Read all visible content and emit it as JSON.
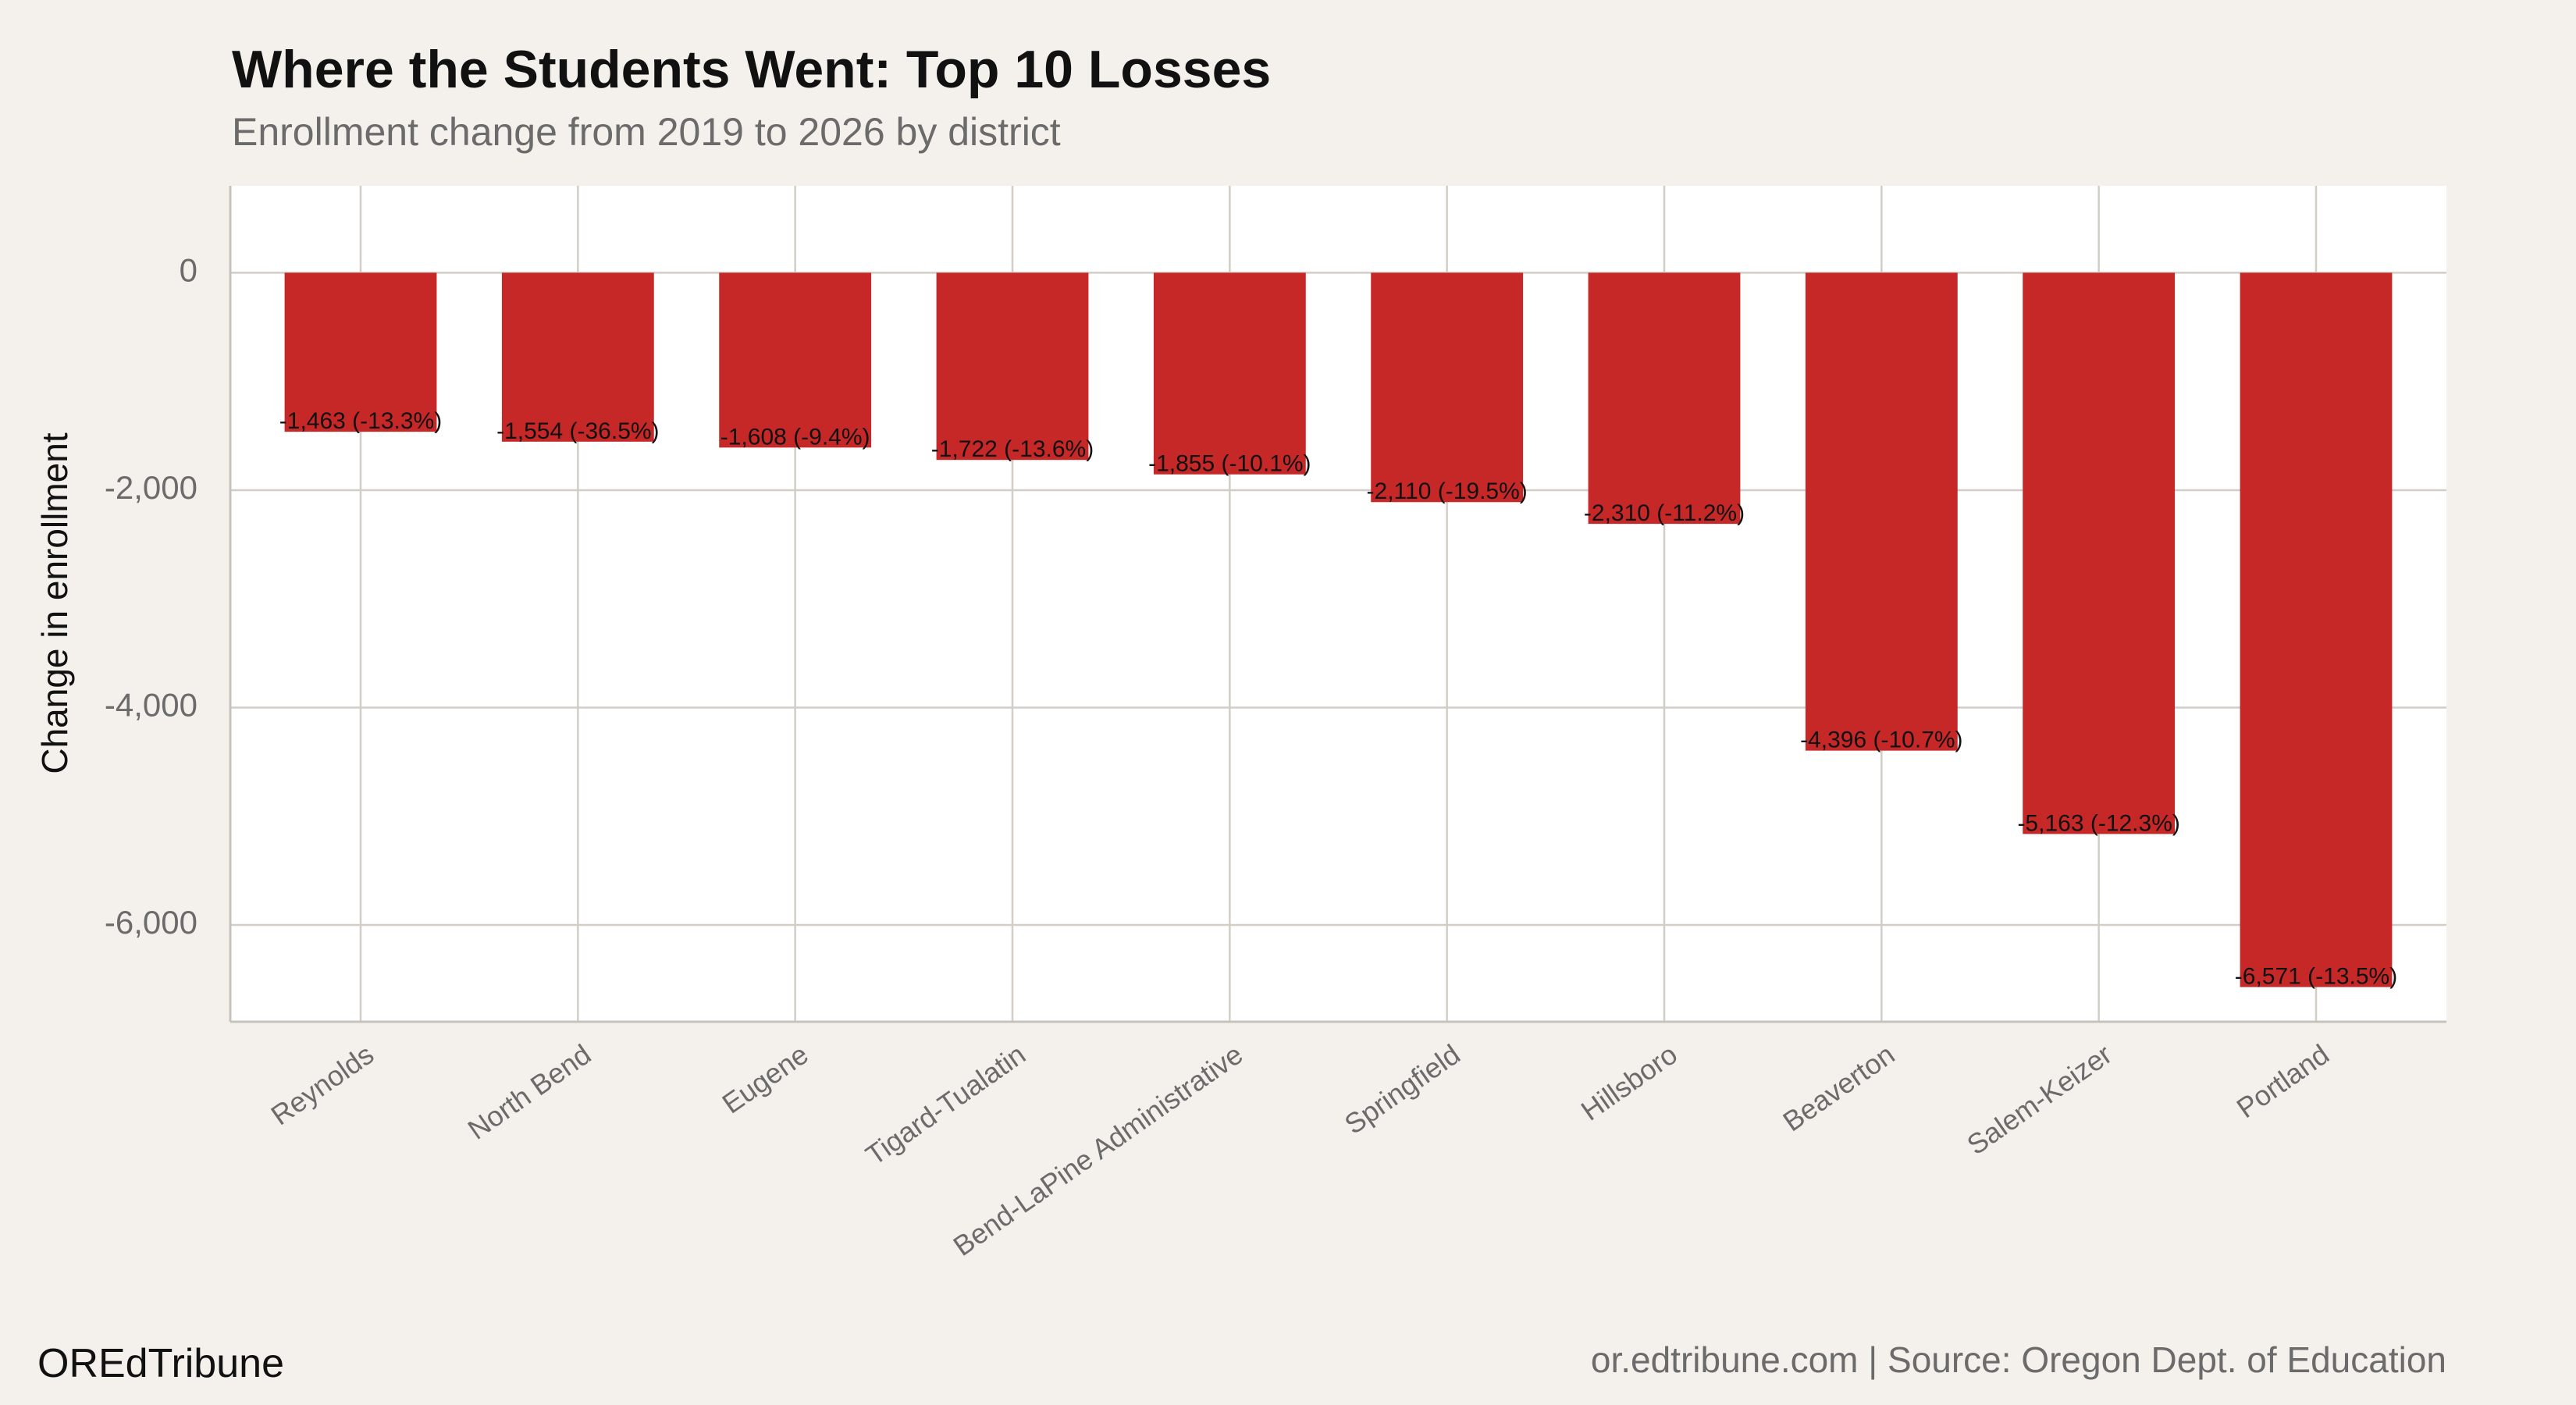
{
  "chart_data": {
    "type": "bar",
    "title": "Where the Students Went: Top 10 Losses",
    "subtitle": "Enrollment change from 2019 to 2026 by district",
    "y_label": "Change in enrollment",
    "source_left": "OREdTribune",
    "source_right": "or.edtribune.com | Source: Oregon Dept. of Education",
    "categories": [
      "Reynolds",
      "North Bend",
      "Eugene",
      "Tigard-Tualatin",
      "Bend-LaPine Administrative",
      "Springfield",
      "Hillsboro",
      "Beaverton",
      "Salem-Keizer",
      "Portland"
    ],
    "values": [
      -1463,
      -1554,
      -1608,
      -1722,
      -1855,
      -2110,
      -2310,
      -4396,
      -5163,
      -6571
    ],
    "value_labels": [
      "-1,463 (-13.3%)",
      "-1,554 (-36.5%)",
      "-1,608 (-9.4%)",
      "-1,722 (-13.6%)",
      "-1,855 (-10.1%)",
      "-2,110 (-19.5%)",
      "-2,310 (-11.2%)",
      "-4,396 (-10.7%)",
      "-5,163 (-12.3%)",
      "-6,571 (-13.5%)"
    ],
    "color": "#c62828",
    "ylim": [
      -6890,
      800
    ],
    "yticks": [
      {
        "value": -6000,
        "label": "-6,000"
      },
      {
        "value": -4000,
        "label": "-4,000"
      },
      {
        "value": -2000,
        "label": "-2,000"
      },
      0
    ],
    "grid": true
  }
}
